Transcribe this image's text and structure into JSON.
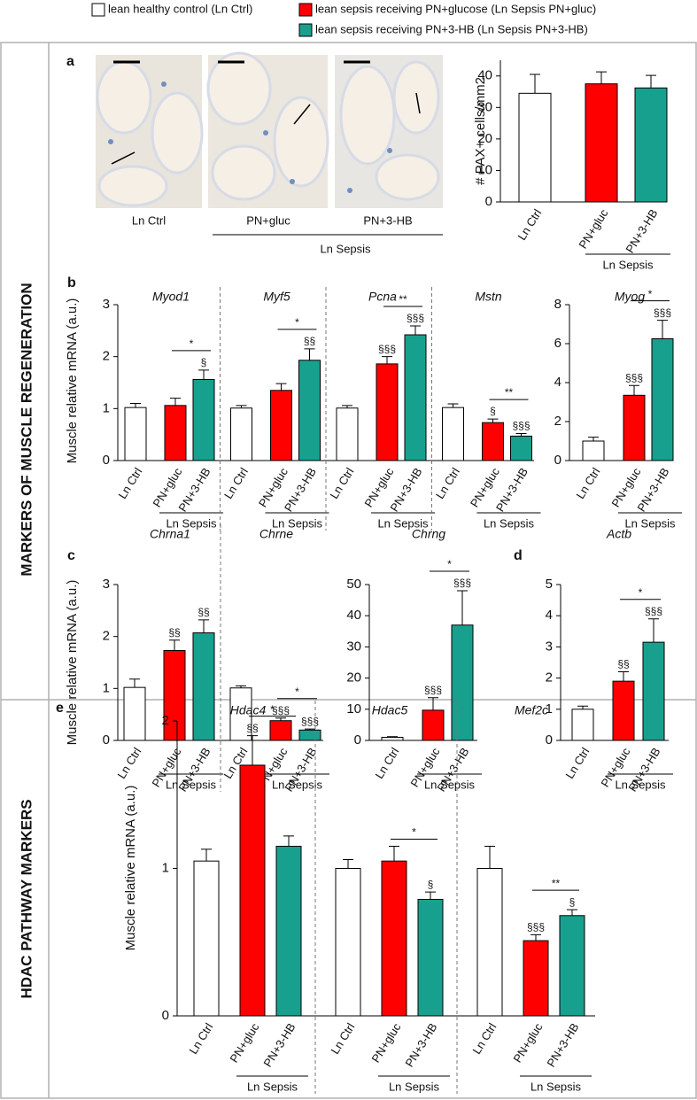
{
  "legend": {
    "items": [
      {
        "name": "lean healthy control (Ln Ctrl)",
        "color": "#ffffff"
      },
      {
        "name": "lean sepsis receiving PN+glucose (Ln Sepsis PN+gluc)",
        "color": "#ff0000"
      },
      {
        "name": "lean sepsis receiving PN+3-HB (Ln Sepsis PN+3-HB)",
        "color": "#17a08e"
      }
    ]
  },
  "sections": [
    "MARKERS OF MUSCLE REGENERATION",
    "HDAC PATHWAY MARKERS"
  ],
  "micrographs": {
    "labels": [
      "Ln Ctrl",
      "PN+gluc",
      "PN+3-HB"
    ],
    "group_label": "Ln Sepsis"
  },
  "chart_data": [
    {
      "type": "bar",
      "panel": "a",
      "ylabel": "# PAX+ cells/mm2",
      "ylim": [
        0,
        45
      ],
      "yticks": [
        0,
        10,
        20,
        30,
        40
      ],
      "categories": [
        "Ln Ctrl",
        "PN+gluc",
        "PN+3-HB"
      ],
      "group_label": "Ln Sepsis",
      "facets": [
        {
          "values": [
            34.5,
            37.5,
            36.2
          ],
          "errors": [
            6,
            3.8,
            4
          ]
        }
      ]
    },
    {
      "type": "bar",
      "panel": "b",
      "ylabel": "Muscle relative mRNA (a.u.)",
      "ylim": [
        0,
        3
      ],
      "yticks": [
        0,
        1,
        2,
        3
      ],
      "categories": [
        "Ln Ctrl",
        "PN+gluc",
        "PN+3-HB"
      ],
      "group_label": "Ln Sepsis",
      "facets": [
        {
          "title": "Myod1",
          "values": [
            1.02,
            1.06,
            1.56
          ],
          "errors": [
            0.08,
            0.14,
            0.18
          ],
          "marks_above": [
            null,
            null,
            "§"
          ],
          "comparison": "*"
        },
        {
          "title": "Myf5",
          "values": [
            1.01,
            1.35,
            1.93
          ],
          "errors": [
            0.05,
            0.13,
            0.22
          ],
          "marks_above": [
            null,
            null,
            "§§"
          ],
          "comparison": "*"
        },
        {
          "title": "Pcna",
          "values": [
            1.01,
            1.86,
            2.42
          ],
          "errors": [
            0.05,
            0.14,
            0.17
          ],
          "marks_above": [
            null,
            "§§§",
            "§§§"
          ],
          "comparison": "**"
        },
        {
          "title": "Mstn",
          "values": [
            1.02,
            0.73,
            0.47
          ],
          "errors": [
            0.07,
            0.07,
            0.05
          ],
          "marks_above": [
            null,
            "§",
            "§§§"
          ],
          "comparison": "**"
        }
      ]
    },
    {
      "type": "bar",
      "ylim": [
        0,
        8
      ],
      "yticks": [
        0,
        2,
        4,
        6,
        8
      ],
      "categories": [
        "Ln Ctrl",
        "PN+gluc",
        "PN+3-HB"
      ],
      "group_label": "Ln Sepsis",
      "facets": [
        {
          "title": "Myog",
          "values": [
            1.0,
            3.35,
            6.25
          ],
          "errors": [
            0.2,
            0.5,
            0.95
          ],
          "marks_above": [
            null,
            "§§§",
            "§§§"
          ],
          "comparison": "*"
        }
      ]
    },
    {
      "type": "bar",
      "panel": "c",
      "ylabel": "Muscle relative mRNA (a.u.)",
      "ylim": [
        0,
        3
      ],
      "yticks": [
        0,
        1,
        2,
        3
      ],
      "categories": [
        "Ln Ctrl",
        "PN+gluc",
        "PN+3-HB"
      ],
      "group_label": "Ln Sepsis",
      "facets": [
        {
          "title": "Chrna1",
          "values": [
            1.02,
            1.73,
            2.07
          ],
          "errors": [
            0.16,
            0.2,
            0.25
          ],
          "marks_above": [
            null,
            "§§",
            "§§"
          ]
        },
        {
          "title": "Chrne",
          "values": [
            1.01,
            0.38,
            0.2
          ],
          "errors": [
            0.04,
            0.05,
            0.02
          ],
          "marks_above": [
            null,
            "§§§",
            "§§§"
          ],
          "comparison": "*"
        }
      ]
    },
    {
      "type": "bar",
      "ylim": [
        0,
        50
      ],
      "yticks": [
        0,
        10,
        20,
        30,
        40,
        50
      ],
      "categories": [
        "Ln Ctrl",
        "PN+gluc",
        "PN+3-HB"
      ],
      "group_label": "Ln Sepsis",
      "facets": [
        {
          "title": "Chrng",
          "values": [
            1.0,
            9.7,
            37
          ],
          "errors": [
            0.2,
            4,
            11
          ],
          "marks_above": [
            null,
            "§§§",
            "§§§"
          ],
          "comparison": "*"
        }
      ]
    },
    {
      "type": "bar",
      "panel": "d",
      "ylim": [
        0,
        5
      ],
      "yticks": [
        0,
        1,
        2,
        3,
        4,
        5
      ],
      "categories": [
        "Ln Ctrl",
        "PN+gluc",
        "PN+3-HB"
      ],
      "group_label": "Ln Sepsis",
      "facets": [
        {
          "title": "Actb",
          "values": [
            1.0,
            1.9,
            3.15
          ],
          "errors": [
            0.1,
            0.3,
            0.75
          ],
          "marks_above": [
            null,
            "§§",
            "§§§"
          ],
          "comparison": "*"
        }
      ]
    },
    {
      "type": "bar",
      "panel": "e",
      "ylabel": "Muscle relative mRNA (a.u.)",
      "ylim": [
        0,
        2
      ],
      "yticks": [
        0,
        1,
        2
      ],
      "categories": [
        "Ln Ctrl",
        "PN+gluc",
        "PN+3-HB"
      ],
      "group_label": "Ln Sepsis",
      "facets": [
        {
          "title": "Hdac4",
          "values": [
            1.05,
            1.7,
            1.15
          ],
          "errors": [
            0.08,
            0.2,
            0.07
          ],
          "marks_above": [
            null,
            "§§",
            null
          ],
          "comparison": "*"
        },
        {
          "title": "Hdac5",
          "values": [
            1.0,
            1.05,
            0.79
          ],
          "errors": [
            0.06,
            0.1,
            0.05
          ],
          "marks_above": [
            null,
            null,
            "§"
          ],
          "comparison": "*"
        },
        {
          "title": "Mef2c",
          "values": [
            1.0,
            0.51,
            0.68
          ],
          "errors": [
            0.15,
            0.04,
            0.04
          ],
          "marks_above": [
            null,
            "§§§",
            "§"
          ],
          "comparison": "**"
        }
      ]
    }
  ]
}
